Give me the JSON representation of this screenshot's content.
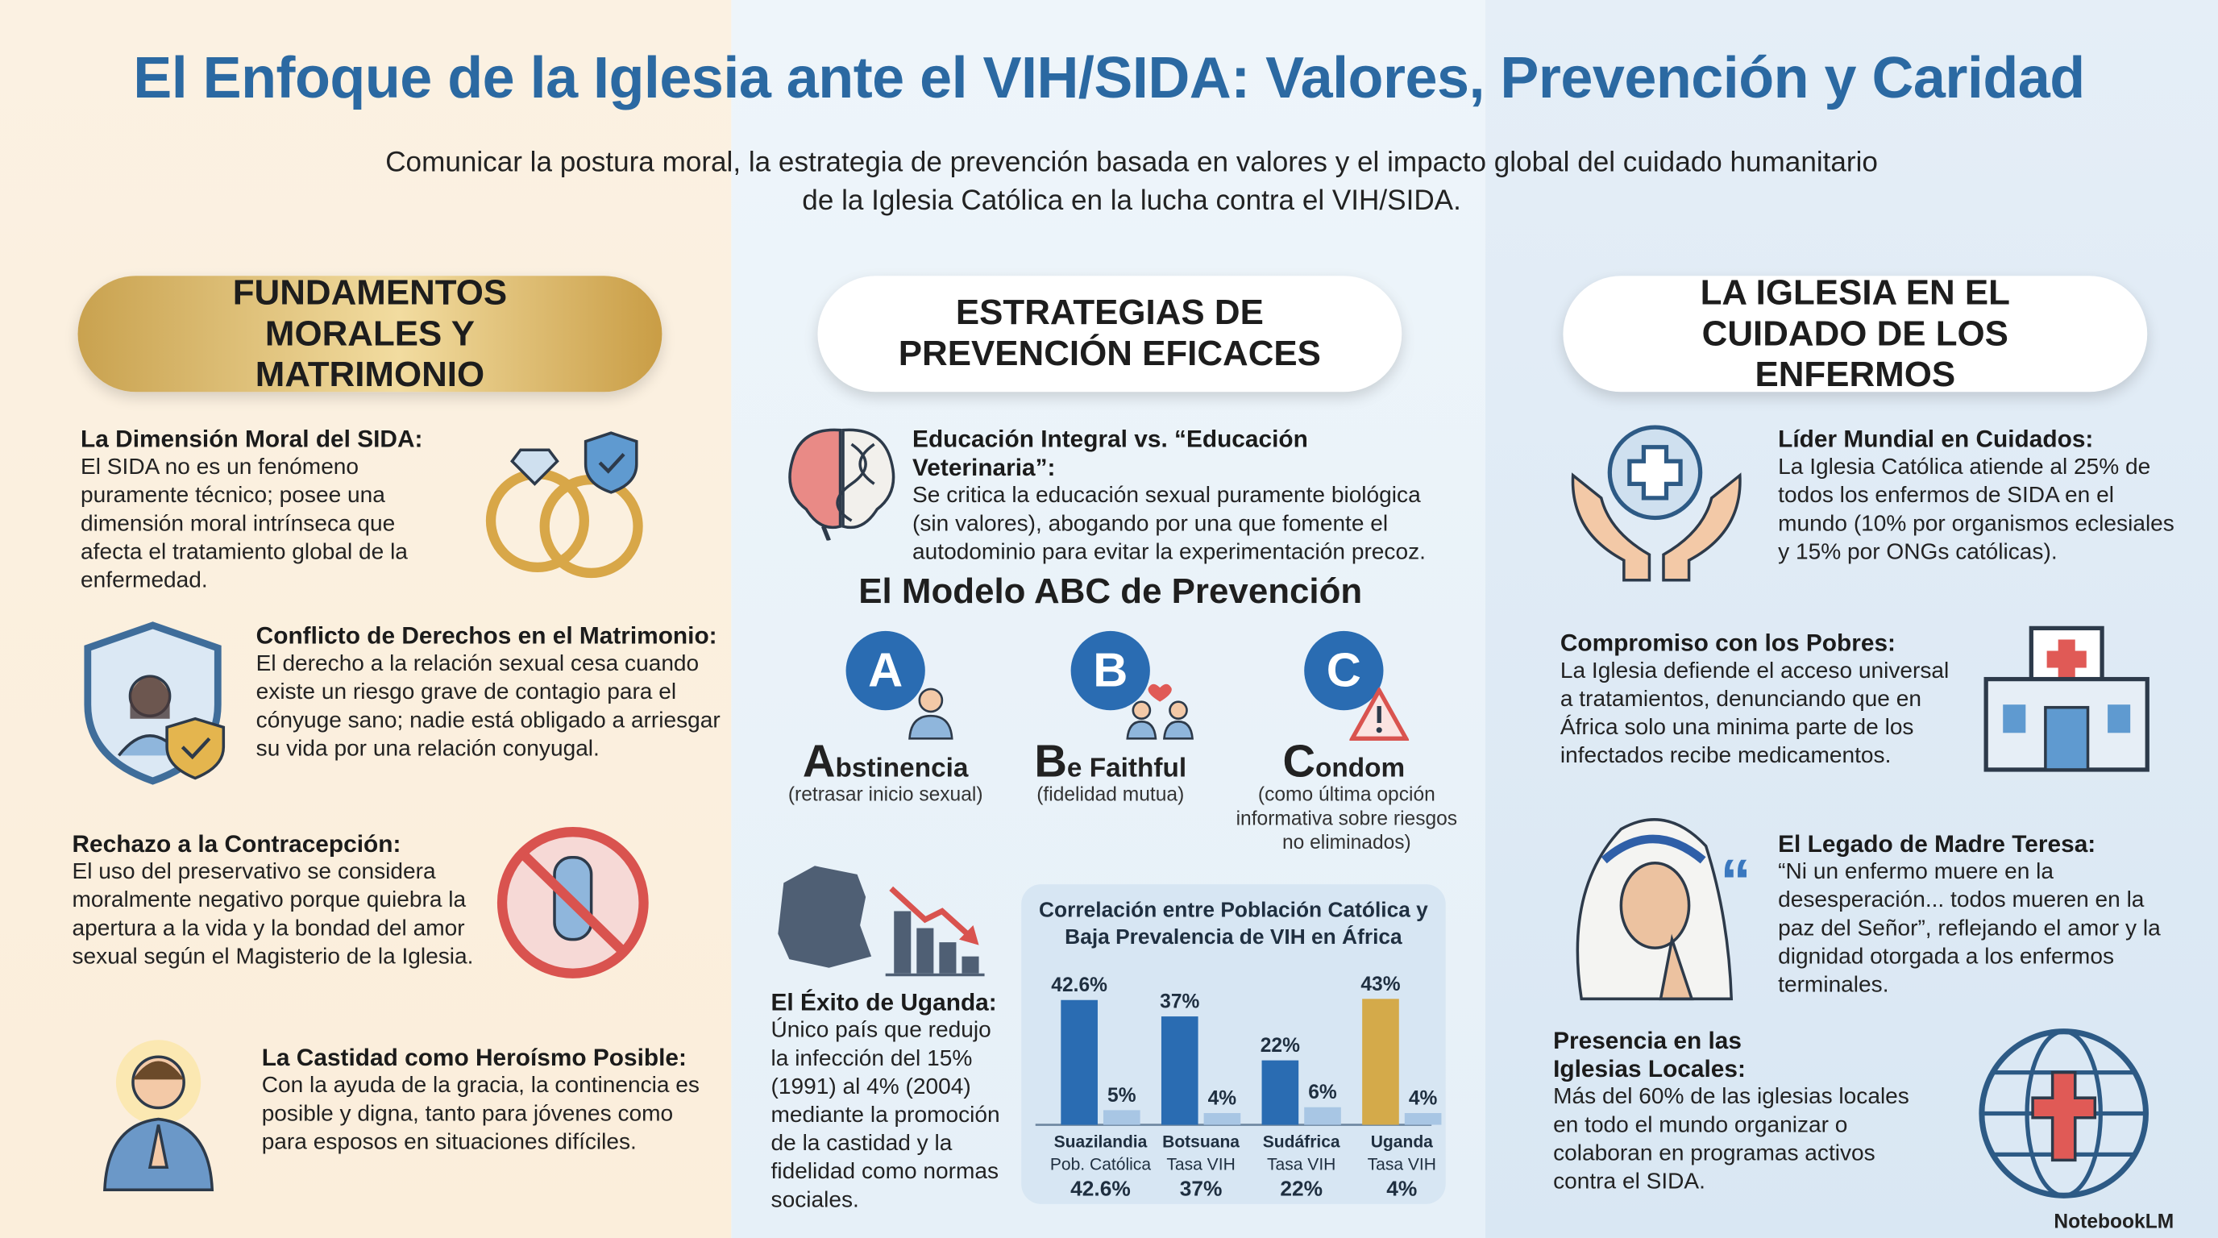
{
  "header": {
    "title": "El Enfoque de la Iglesia ante el VIH/SIDA: Valores, Prevención y Caridad",
    "subtitle": "Comunicar la postura moral, la estrategia de prevención basada en valores y el impacto global del cuidado humanitario de la Iglesia Católica en la lucha contra el VIH/SIDA."
  },
  "columns": [
    {
      "heading": "FUNDAMENTOS MORALES Y MATRIMONIO",
      "items": [
        {
          "title": "La Dimensión Moral del SIDA:",
          "text": "El SIDA no es un fenómeno puramente técnico; posee una dimensión moral intrínseca que afecta el tratamiento global de la enfermedad."
        },
        {
          "title": "Conflicto de Derechos en el Matrimonio:",
          "text": "El derecho a la relación sexual cesa cuando existe un riesgo grave de contagio para el cónyuge sano; nadie está obligado a arriesgar su vida por una relación conyugal."
        },
        {
          "title": "Rechazo a la Contracepción:",
          "text": "El uso del preservativo se considera moralmente negativo porque quiebra la apertura a la vida y la bondad del amor sexual según el Magisterio de la Iglesia."
        },
        {
          "title": "La Castidad como Heroísmo Posible:",
          "text": "Con la ayuda de la gracia, la continencia es posible y digna, tanto para jóvenes como para esposos en situaciones difíciles."
        }
      ]
    },
    {
      "heading": "ESTRATEGIAS DE PREVENCIÓN EFICACES",
      "items": [
        {
          "title": "Educación Integral vs. “Educación Veterinaria”:",
          "text": "Se critica la educación sexual puramente biológica (sin valores), abogando por una que fomente el autodominio para evitar la experimentación precoz."
        },
        {
          "title": "El Éxito de Uganda:",
          "text": "Único país que redujo la infección del 15% (1991) al 4% (2004) mediante la promoción de la castidad y la fidelidad como normas sociales."
        }
      ],
      "abc": {
        "title": "El Modelo ABC de Prevención",
        "steps": [
          {
            "badge": "A",
            "initial": "A",
            "rest": "bstinencia",
            "note": "(retrasar inicio sexual)"
          },
          {
            "badge": "B",
            "initial": "B",
            "rest": "e Faithful",
            "note": "(fidelidad mutua)"
          },
          {
            "badge": "C",
            "initial": "C",
            "rest": "ondom",
            "note": "(como última opción informativa sobre riesgos no eliminados)"
          }
        ]
      }
    },
    {
      "heading": "LA IGLESIA EN EL CUIDADO DE LOS ENFERMOS",
      "items": [
        {
          "title": "Líder Mundial en Cuidados:",
          "text": "La Iglesia Católica atiende al 25% de todos los enfermos de SIDA en el mundo (10% por organismos eclesiales y 15% por ONGs católicas)."
        },
        {
          "title": "Compromiso con los Pobres:",
          "text": "La Iglesia defiende el acceso universal a tratamientos, denunciando que en África solo una minima parte de los infectados recibe medicamentos."
        },
        {
          "title": "El Legado de Madre Teresa:",
          "text": "“Ni un enfermo muere en la desesperación... todos mueren en la paz del Señor”, reflejando el amor y la dignidad otorgada a los enfermos terminales."
        },
        {
          "title": "Presencia en las Iglesias Locales:",
          "text": "Más del 60% de las iglesias locales en todo el mundo organizar o colaboran en programas activos contra el SIDA."
        }
      ]
    }
  ],
  "chart_data": {
    "type": "bar",
    "title": "Correlación entre Población Católica y Baja Prevalencia de VIH en África",
    "categories": [
      "Suazilandia",
      "Botsuana",
      "Sudáfrica",
      "Uganda"
    ],
    "sublabels": [
      "Pob. Católica",
      "Tasa VIH",
      "Tasa VIH",
      "Tasa VIH"
    ],
    "footer_labels": [
      "42.6%",
      "37%",
      "22%",
      "4%"
    ],
    "series": [
      {
        "colors": [
          "#2a6cb2",
          "#2a6cb2",
          "#2a6cb2",
          "#d4aa4a"
        ],
        "values": [
          42.6,
          37,
          22,
          43
        ],
        "value_labels": [
          "42.6%",
          "37%",
          "22%",
          "43%"
        ]
      },
      {
        "color": "#a8c6e4",
        "values": [
          5,
          4,
          6,
          4
        ],
        "value_labels": [
          "5%",
          "4%",
          "6%",
          "4%"
        ]
      }
    ]
  },
  "footer": {
    "brand": "NotebookLM"
  }
}
